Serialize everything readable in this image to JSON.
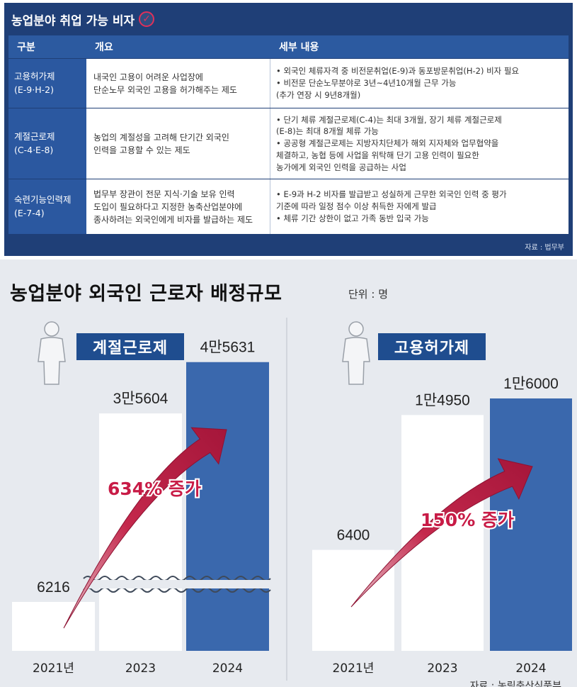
{
  "table": {
    "title": "농업분야 취업 가능 비자",
    "headers": [
      "구분",
      "개요",
      "세부 내용"
    ],
    "rows": [
      {
        "category": [
          "고용허가제",
          "(E-9·H-2)"
        ],
        "overview": [
          "내국인 고용이 어려운 사업장에",
          "단순노무 외국인 고용을 허가해주는 제도"
        ],
        "details": [
          "• 외국인 체류자격 중 비전문취업(E-9)과 동포방문취업(H-2) 비자 필요",
          "• 비전문 단순노무분야로 3년~4년10개월 근무 가능",
          "  (추가 연장 시 9년8개월)"
        ]
      },
      {
        "category": [
          "계절근로제",
          "(C-4·E-8)"
        ],
        "overview": [
          "농업의 계절성을 고려해 단기간 외국인",
          "인력을 고용할 수 있는 제도"
        ],
        "details": [
          "• 단기 체류 계절근로제(C-4)는 최대 3개월, 장기 체류 계절근로제",
          "  (E-8)는 최대 8개월 체류 가능",
          "• 공공형 계절근로제는 지방자치단체가 해외 지자체와 업무협약을",
          "  체결하고, 농협 등에 사업을 위탁해 단기 고용 인력이 필요한",
          "  농가에게 외국인 인력을 공급하는 사업"
        ]
      },
      {
        "category": [
          "숙련기능인력제",
          "(E-7-4)"
        ],
        "overview": [
          "법무부 장관이 전문 지식·기술 보유 인력",
          "도입이 필요하다고 지정한 농축산업분야에",
          "종사하려는 외국인에게 비자를 발급하는 제도"
        ],
        "details": [
          "• E-9과 H-2 비자를 발급받고 성실하게 근무한 외국인 인력 중 평가",
          "  기준에 따라 일정 점수 이상 취득한 자에게 발급",
          "• 체류 기간 상한이 없고 가족 동반 입국 가능"
        ]
      }
    ],
    "source": "자료 : 법무부"
  },
  "chart": {
    "title": "농업분야 외국인 근로자 배정규모",
    "unit": "단위 : 명",
    "source": "자료 : 농림축산식품부"
  },
  "colors": {
    "navy": "#1f3f77",
    "blue_bar": "#3a68ad",
    "arrow": "#b0183a",
    "label_fill": "#c81b46"
  },
  "chart_data": [
    {
      "type": "bar",
      "title": "계절근로제",
      "categories": [
        "2021년",
        "2023",
        "2024"
      ],
      "values": [
        6216,
        35604,
        45631
      ],
      "value_labels": [
        "6216",
        "3만5604",
        "4만5631"
      ],
      "annotation": "634% 증가",
      "axis_break": true
    },
    {
      "type": "bar",
      "title": "고용허가제",
      "categories": [
        "2021년",
        "2023",
        "2024"
      ],
      "values": [
        6400,
        14950,
        16000
      ],
      "value_labels": [
        "6400",
        "1만4950",
        "1만6000"
      ],
      "annotation": "150% 증가"
    }
  ]
}
